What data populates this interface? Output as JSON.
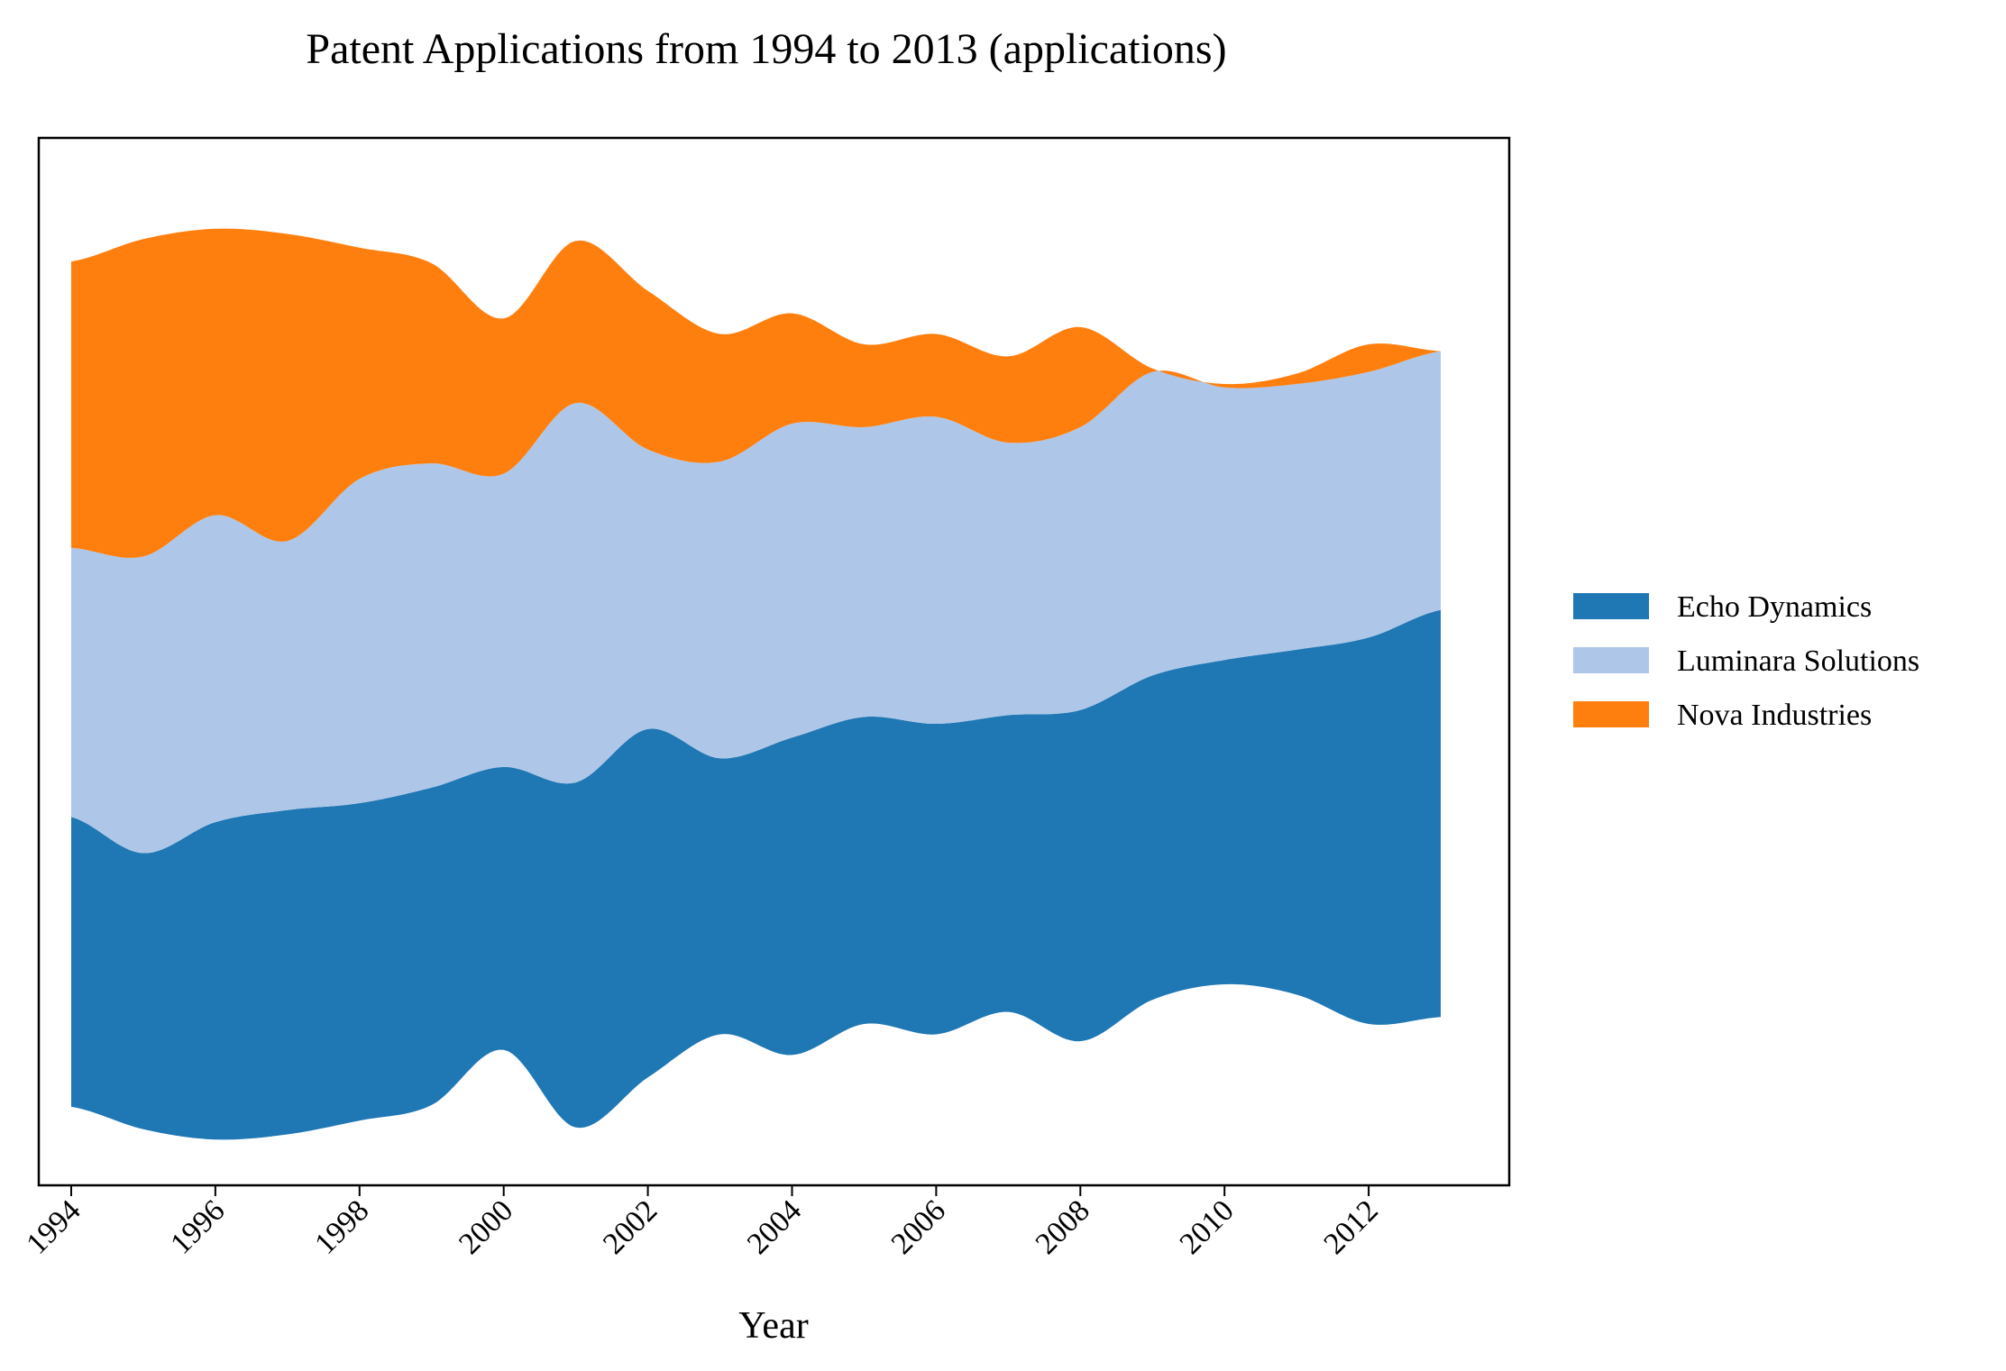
{
  "chart_data": {
    "type": "area",
    "subtype": "streamgraph",
    "title": "Patent Applications from 1994 to 2013 (applications)",
    "xlabel": "Year",
    "ylabel": "",
    "x": [
      1994,
      1995,
      1996,
      1997,
      1998,
      1999,
      2000,
      2001,
      2002,
      2003,
      2004,
      2005,
      2006,
      2007,
      2008,
      2009,
      2010,
      2011,
      2012,
      2013
    ],
    "xticks": [
      "1994",
      "1996",
      "1998",
      "2000",
      "2002",
      "2004",
      "2006",
      "2008",
      "2010",
      "2012"
    ],
    "xlim": [
      1993.55,
      2013.95
    ],
    "yticks_visible": false,
    "grid": false,
    "legend_position": "right",
    "series": [
      {
        "name": "Echo Dynamics",
        "color": "#1f77b4",
        "values": [
          84,
          80,
          92,
          94,
          92,
          92,
          82,
          100,
          101,
          80,
          92,
          89,
          90,
          86,
          96,
          94,
          94,
          100,
          112,
          118
        ]
      },
      {
        "name": "Luminara Solutions",
        "color": "#aec7e8",
        "values": [
          78,
          86,
          89,
          78,
          94,
          94,
          85,
          110,
          81,
          86,
          91,
          84,
          89,
          79,
          82,
          88,
          79,
          77,
          77,
          75
        ]
      },
      {
        "name": "Nova Industries",
        "color": "#ff7f0e",
        "values": [
          83,
          92,
          83,
          89,
          67,
          58,
          45,
          47,
          46,
          37,
          32,
          24,
          24,
          25,
          29,
          1,
          1,
          3,
          8,
          0
        ]
      }
    ]
  }
}
